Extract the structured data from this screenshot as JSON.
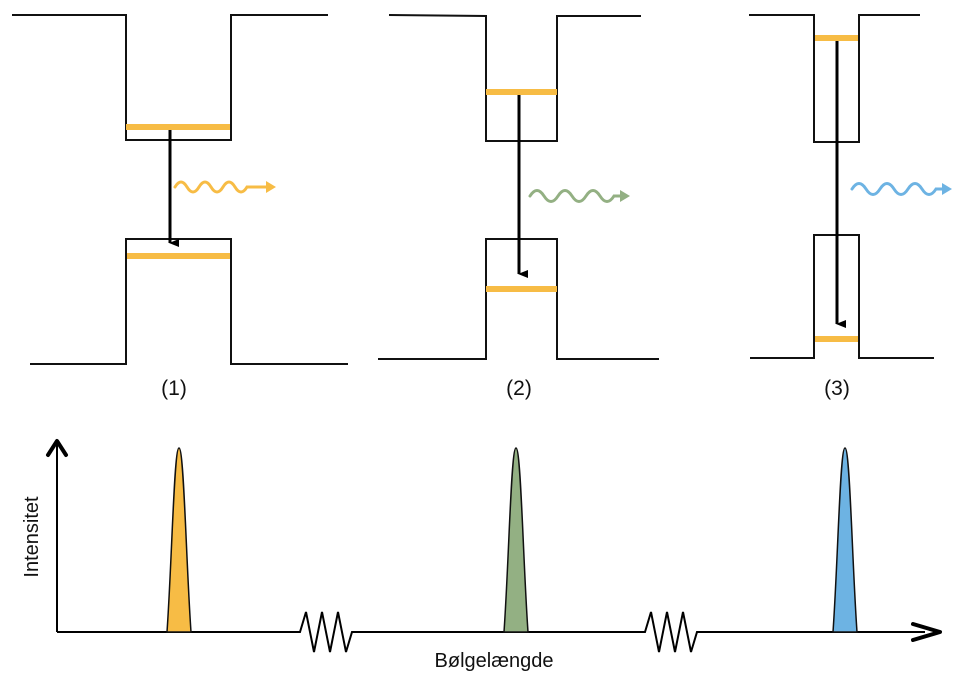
{
  "colors": {
    "level": "#f7bc45",
    "stroke": "#111111",
    "photon_yellow": "#f7bc45",
    "photon_green": "#93b083",
    "photon_blue": "#6db3e3"
  },
  "panels": [
    {
      "label": "(1)",
      "photon_color": "#f7bc45"
    },
    {
      "label": "(2)",
      "photon_color": "#93b083"
    },
    {
      "label": "(3)",
      "photon_color": "#6db3e3"
    }
  ],
  "spectrum": {
    "ylabel": "Intensitet",
    "xlabel": "Bølgelængde",
    "peaks": [
      {
        "color": "#f7bc45"
      },
      {
        "color": "#93b083"
      },
      {
        "color": "#6db3e3"
      }
    ]
  }
}
